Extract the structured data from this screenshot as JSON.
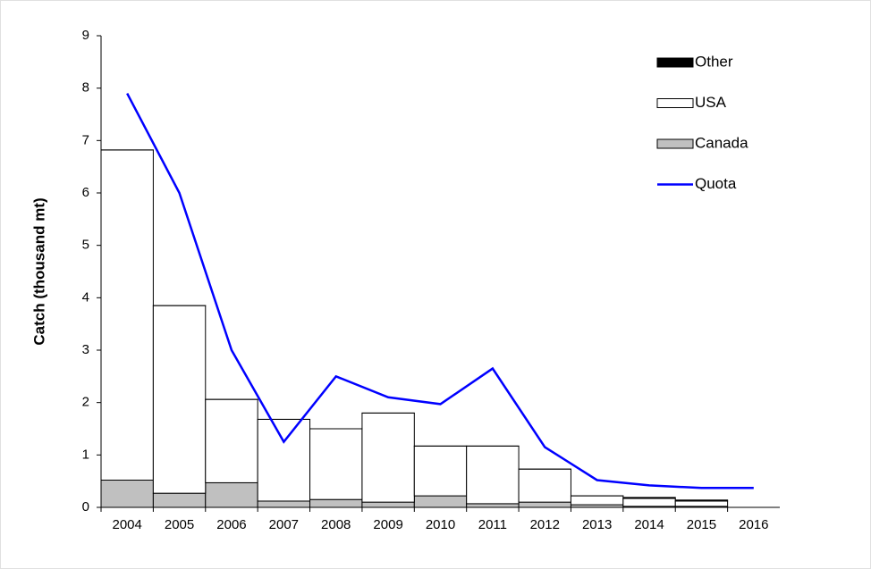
{
  "chart_data": {
    "type": "bar",
    "stacked": true,
    "y_label": "Catch (thousand mt)",
    "categories": [
      "2004",
      "2005",
      "2006",
      "2007",
      "2008",
      "2009",
      "2010",
      "2011",
      "2012",
      "2013",
      "2014",
      "2015",
      "2016"
    ],
    "series": [
      {
        "name": "Other",
        "color": "#000000",
        "values": [
          0,
          0,
          0,
          0,
          0,
          0,
          0,
          0,
          0,
          0,
          0.02,
          0.02,
          null
        ]
      },
      {
        "name": "USA",
        "color": "#ffffff",
        "values": [
          6.3,
          3.58,
          1.59,
          1.56,
          1.35,
          1.7,
          0.95,
          1.1,
          0.63,
          0.17,
          0.15,
          0.1,
          null
        ]
      },
      {
        "name": "Canada",
        "color": "#c0c0c0",
        "values": [
          0.52,
          0.27,
          0.47,
          0.12,
          0.15,
          0.1,
          0.22,
          0.07,
          0.1,
          0.05,
          0.02,
          0.02,
          null
        ]
      },
      {
        "name": "Quota",
        "color": "#0000ff",
        "type": "line",
        "values": [
          7.9,
          6.0,
          3.0,
          1.25,
          2.5,
          2.1,
          1.97,
          2.65,
          1.15,
          0.52,
          0.42,
          0.37,
          0.37
        ]
      }
    ],
    "ylim": [
      0,
      9
    ],
    "yticks": [
      0,
      1,
      2,
      3,
      4,
      5,
      6,
      7,
      8,
      9
    ],
    "grid": false,
    "legend": "top-right"
  }
}
